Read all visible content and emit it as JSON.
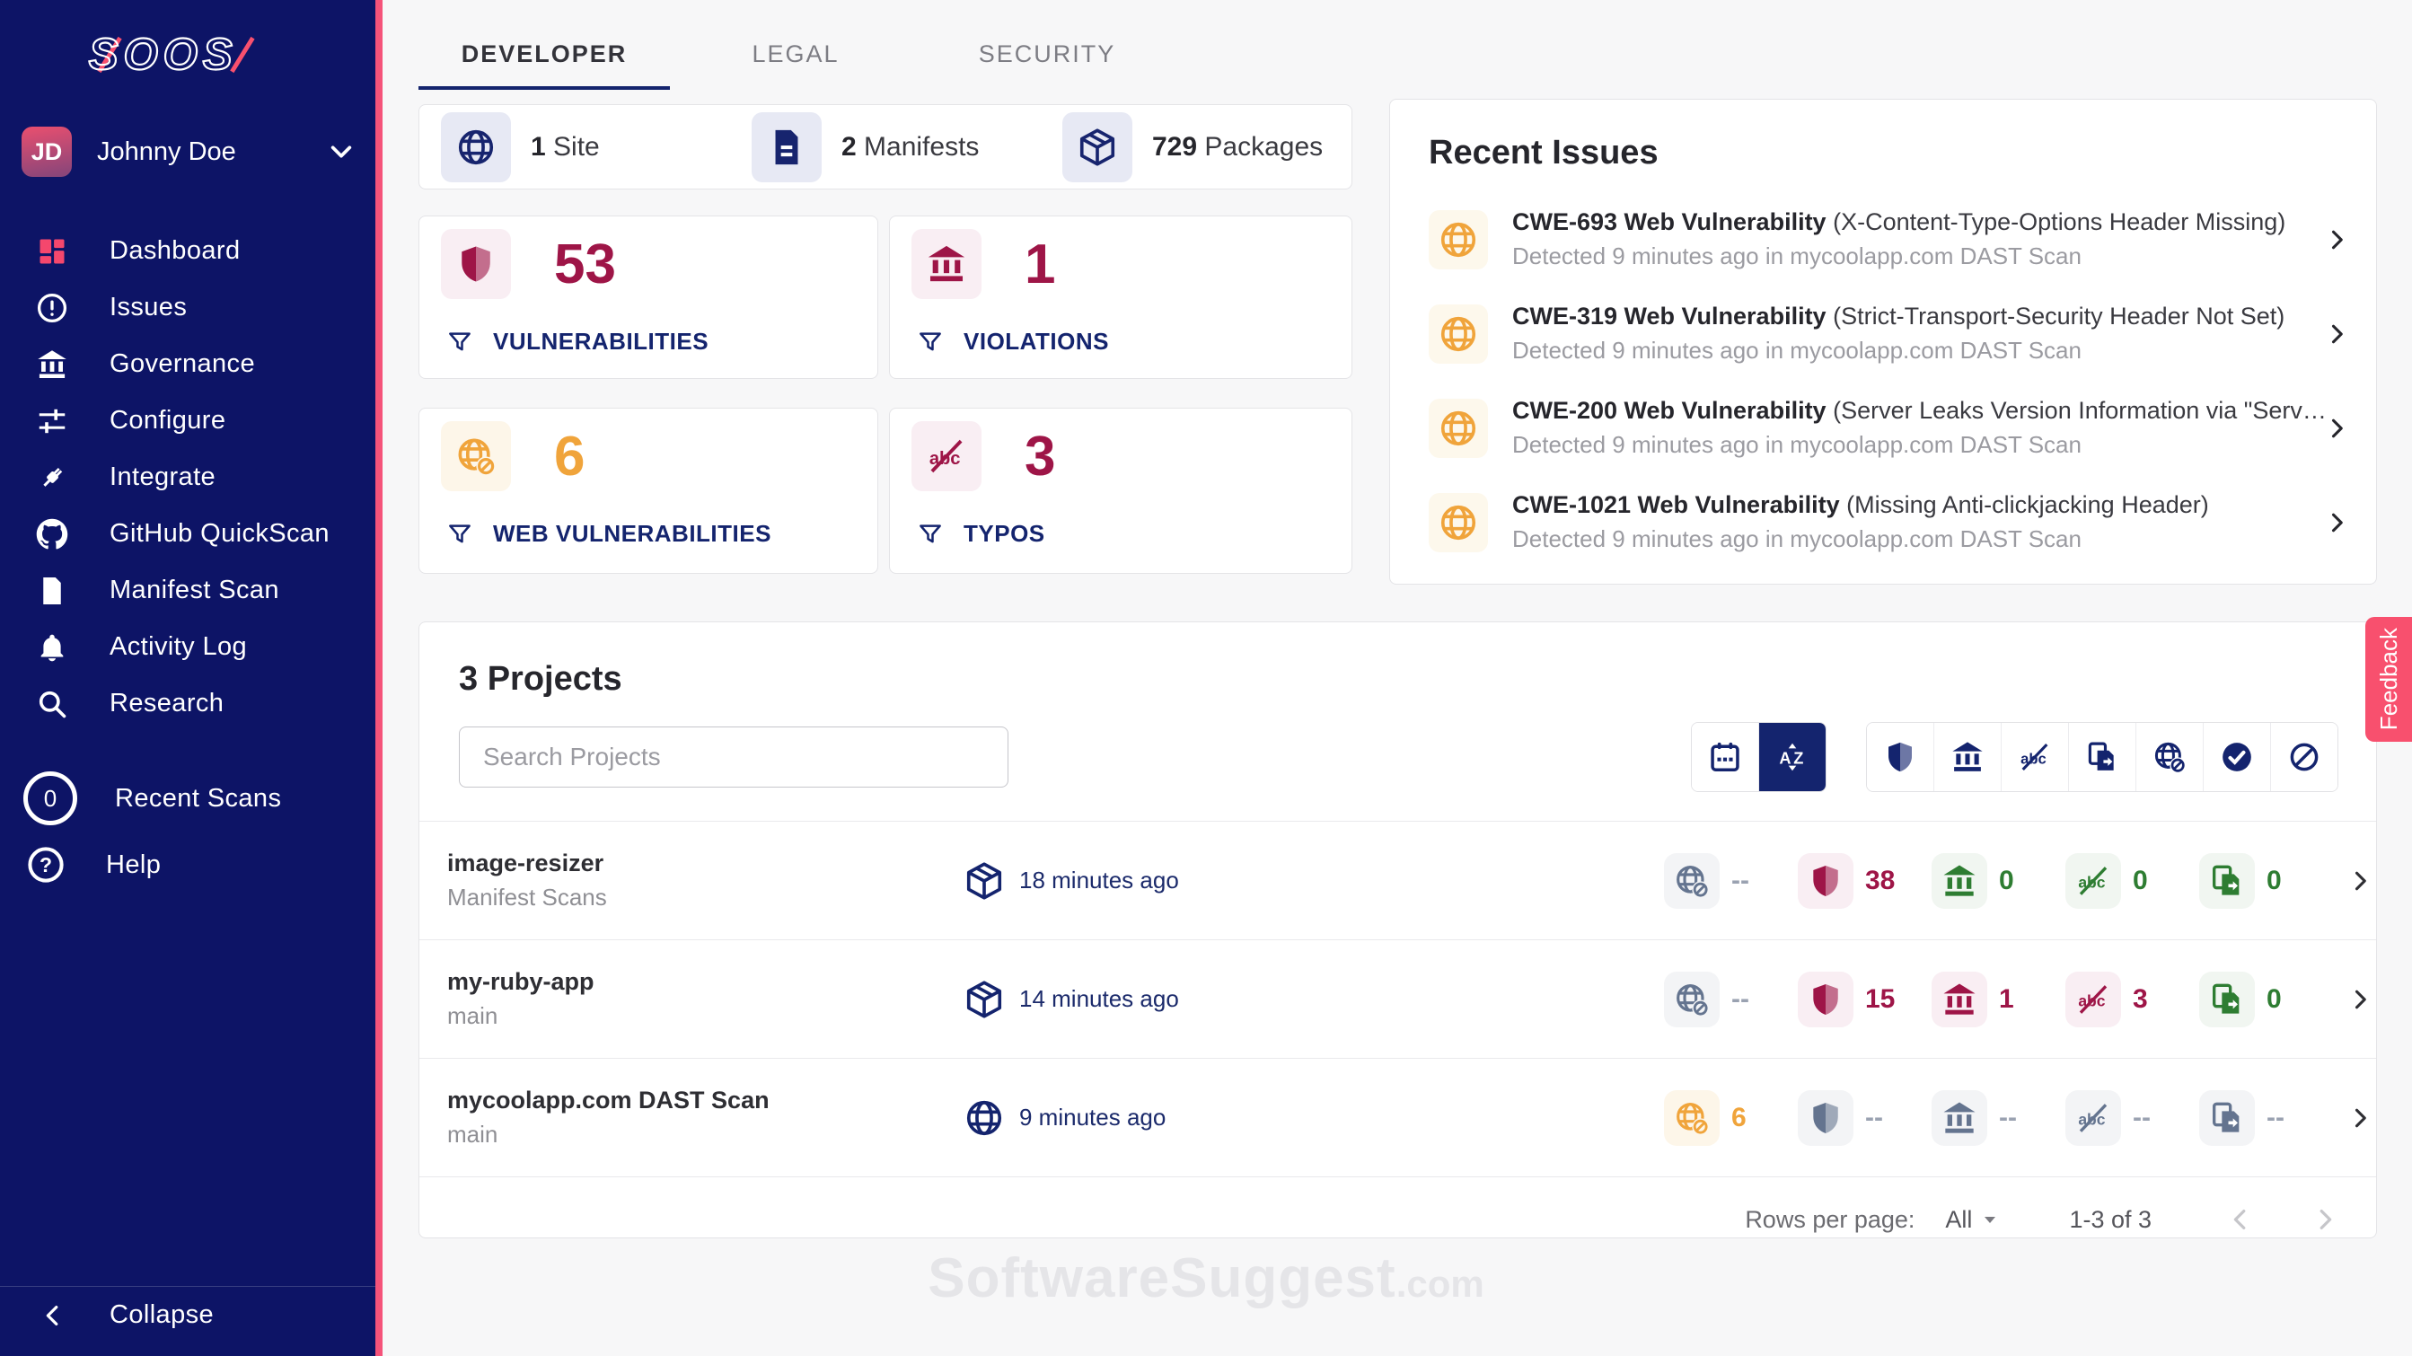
{
  "colors": {
    "accent": "#f8506e",
    "navy": "#0d1466",
    "crimson": "#9e1547",
    "orange": "#f0a43b",
    "green": "#2e7d32",
    "muted_icon": "#64748f"
  },
  "sidebar": {
    "logo_name": "SOOS",
    "user": {
      "initials": "JD",
      "name": "Johnny Doe",
      "chevron_icon": "chevron-down"
    },
    "items": [
      {
        "label": "Dashboard",
        "icon": "dashboard"
      },
      {
        "label": "Issues",
        "icon": "alert-circle"
      },
      {
        "label": "Governance",
        "icon": "bank"
      },
      {
        "label": "Configure",
        "icon": "sliders"
      },
      {
        "label": "Integrate",
        "icon": "plug"
      },
      {
        "label": "GitHub QuickScan",
        "icon": "github"
      },
      {
        "label": "Manifest Scan",
        "icon": "file-upload"
      },
      {
        "label": "Activity Log",
        "icon": "bell"
      },
      {
        "label": "Research",
        "icon": "search"
      }
    ],
    "secondary_items": [
      {
        "label": "Recent Scans",
        "badge": "0"
      },
      {
        "label": "Help",
        "icon": "question-circle"
      }
    ],
    "collapse_label": "Collapse",
    "collapse_icon": "chevron-left"
  },
  "tabs": [
    {
      "label": "DEVELOPER",
      "active": true
    },
    {
      "label": "LEGAL",
      "active": false
    },
    {
      "label": "SECURITY",
      "active": false
    }
  ],
  "stats": [
    {
      "icon": "globe",
      "value": "1",
      "label": "Site"
    },
    {
      "icon": "manifest",
      "value": "2",
      "label": "Manifests"
    },
    {
      "icon": "package",
      "value": "729",
      "label": "Packages"
    }
  ],
  "metric_cards": [
    {
      "icon": "shield",
      "value": "53",
      "label": "VULNERABILITIES",
      "state": "crimson",
      "filter_icon": "funnel"
    },
    {
      "icon": "bank",
      "value": "1",
      "label": "VIOLATIONS",
      "state": "crimson",
      "filter_icon": "funnel"
    },
    {
      "icon": "globe-slash",
      "value": "6",
      "label": "WEB VULNERABILITIES",
      "state": "orange",
      "filter_icon": "funnel"
    },
    {
      "icon": "abc-strike",
      "value": "3",
      "label": "TYPOS",
      "state": "crimson",
      "filter_icon": "funnel"
    }
  ],
  "recent_issues": {
    "title": "Recent Issues",
    "item_icon": "globe",
    "items": [
      {
        "title": "CWE-693 Web Vulnerability",
        "desc": "(X-Content-Type-Options Header Missing)",
        "detail": "Detected 9 minutes ago in mycoolapp.com DAST Scan"
      },
      {
        "title": "CWE-319 Web Vulnerability",
        "desc": "(Strict-Transport-Security Header Not Set)",
        "detail": "Detected 9 minutes ago in mycoolapp.com DAST Scan"
      },
      {
        "title": "CWE-200 Web Vulnerability",
        "desc": "(Server Leaks Version Information via \"Serv…",
        "detail": "Detected 9 minutes ago in mycoolapp.com DAST Scan"
      },
      {
        "title": "CWE-1021 Web Vulnerability",
        "desc": "(Missing Anti-clickjacking Header)",
        "detail": "Detected 9 minutes ago in mycoolapp.com DAST Scan"
      }
    ]
  },
  "projects": {
    "title": "3 Projects",
    "search_placeholder": "Search Projects",
    "toolbar": {
      "sort_icons": [
        "calendar",
        "az-sort"
      ],
      "active_sort": "az-sort",
      "filter_icons": [
        "shield",
        "bank",
        "abc-strike",
        "file-copy",
        "globe-slash",
        "check-circle",
        "slash-circle"
      ]
    },
    "rows": [
      {
        "name": "image-resizer",
        "subtitle": "Manifest Scans",
        "time": "18 minutes ago",
        "time_icon": "package",
        "stats": [
          {
            "icon": "globe-slash",
            "value": "--",
            "state": "muted"
          },
          {
            "icon": "shield",
            "value": "38",
            "state": "crimson"
          },
          {
            "icon": "bank",
            "value": "0",
            "state": "green"
          },
          {
            "icon": "abc-strike",
            "value": "0",
            "state": "green"
          },
          {
            "icon": "file-copy",
            "value": "0",
            "state": "green"
          }
        ]
      },
      {
        "name": "my-ruby-app",
        "subtitle": "main",
        "time": "14 minutes ago",
        "time_icon": "package",
        "stats": [
          {
            "icon": "globe-slash",
            "value": "--",
            "state": "muted"
          },
          {
            "icon": "shield",
            "value": "15",
            "state": "crimson"
          },
          {
            "icon": "bank",
            "value": "1",
            "state": "crimson"
          },
          {
            "icon": "abc-strike",
            "value": "3",
            "state": "crimson"
          },
          {
            "icon": "file-copy",
            "value": "0",
            "state": "green"
          }
        ]
      },
      {
        "name": "mycoolapp.com DAST Scan",
        "subtitle": "main",
        "time": "9 minutes ago",
        "time_icon": "globe",
        "stats": [
          {
            "icon": "globe-slash",
            "value": "6",
            "state": "orange"
          },
          {
            "icon": "shield",
            "value": "--",
            "state": "muted"
          },
          {
            "icon": "bank",
            "value": "--",
            "state": "muted"
          },
          {
            "icon": "abc-strike",
            "value": "--",
            "state": "muted"
          },
          {
            "icon": "file-copy",
            "value": "--",
            "state": "muted"
          }
        ]
      }
    ],
    "pagination": {
      "rows_per_page_label": "Rows per page:",
      "rows_per_page_value": "All",
      "range_label": "1-3 of 3"
    }
  },
  "feedback_label": "Feedback",
  "watermark": {
    "main": "SoftwareSuggest",
    "suffix": ".com"
  }
}
